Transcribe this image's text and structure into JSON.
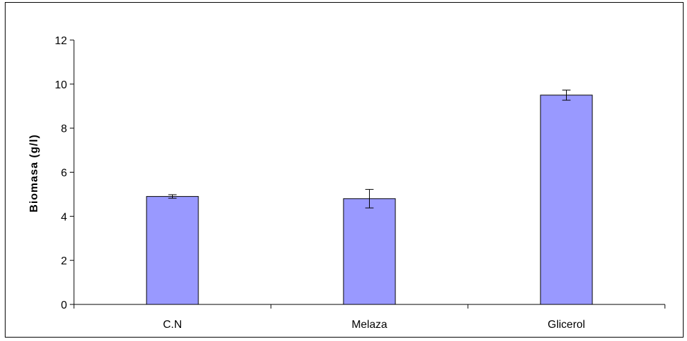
{
  "chart_data": {
    "type": "bar",
    "title": "",
    "xlabel": "",
    "ylabel": "Biomasa (g/l)",
    "categories": [
      "C.N",
      "Melaza",
      "Glicerol"
    ],
    "values": [
      4.9,
      4.8,
      9.5
    ],
    "error_low": [
      4.82,
      4.38,
      9.27
    ],
    "error_high": [
      4.98,
      5.22,
      9.73
    ],
    "ylim": [
      0,
      12
    ],
    "yticks": [
      "0",
      "2",
      "4",
      "6",
      "8",
      "10",
      "12"
    ],
    "ytick_values": [
      0,
      2,
      4,
      6,
      8,
      10,
      12
    ],
    "grid": false,
    "legend": "none",
    "colors": {
      "bar_fill": "#9999ff",
      "bar_stroke": "#000000",
      "axis": "#000000"
    }
  }
}
